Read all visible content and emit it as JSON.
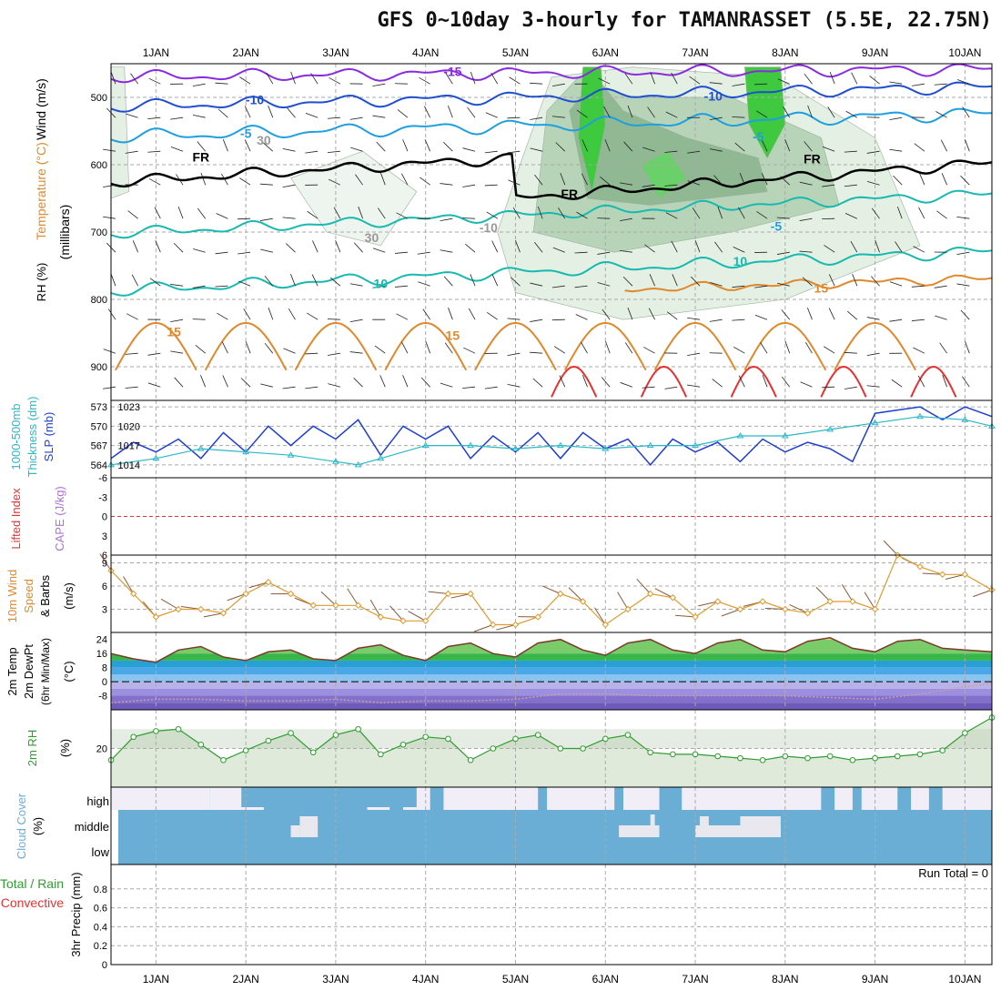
{
  "title": "GFS 0~10day 3-hourly for TAMANRASSET (5.5E, 22.75N)",
  "colors": {
    "rh_green": "#3ec93e",
    "temp_purple": "#8a2be2",
    "temp_blue": "#1f4fd0",
    "temp_cyan": "#1e9fe0",
    "temp_teal": "#17b9b0",
    "temp_orange": "#e0882a",
    "temp_red": "#e83030",
    "slp_blue": "#1f3fd0",
    "thick_cyan": "#2ab8c8",
    "wind_orange": "#e09a30",
    "rh2m_green": "#2e9e2e",
    "cloud_blue": "#6aaed6",
    "cloud_high_white": "#f2eef8"
  },
  "x_axis": {
    "dates": [
      "1JAN",
      "2JAN",
      "3JAN",
      "4JAN",
      "5JAN",
      "6JAN",
      "7JAN",
      "8JAN",
      "9JAN",
      "10JAN"
    ],
    "start_day": 0.5,
    "end_day": 10.3
  },
  "panels": {
    "upper_air": {
      "ylabel_wind": "Wind (m/s)",
      "ylabel_temp": "Temperature (°C)",
      "ylabel_rh": "RH (%)",
      "ylabel_p": "(millibars)",
      "yticks": [
        500,
        600,
        700,
        800,
        900
      ],
      "ylim": [
        450,
        950
      ],
      "contour_labels": [
        "-15",
        "-10",
        "-5",
        "-10",
        "-5",
        "FR",
        "FR",
        "FR",
        "10",
        "10",
        "15",
        "15",
        "15",
        "30",
        "-10",
        "30",
        "-5"
      ]
    },
    "slp": {
      "ylabel_a": "1000-500mb",
      "ylabel_b": "Thickness (dm)",
      "ylabel_c": "SLP (mb)",
      "left_ticks": [
        564,
        567,
        570,
        573
      ],
      "right_ticks": [
        1014,
        1017,
        1020,
        1023
      ]
    },
    "cape": {
      "ylabel_a": "Lifted Index",
      "ylabel_b": "CAPE (J/kg)",
      "yticks": [
        "-6",
        "-3",
        "0",
        "3",
        "6"
      ]
    },
    "wind10m": {
      "ylabel_a": "10m Wind",
      "ylabel_b": "Speed",
      "ylabel_c": "& Barbs",
      "ylabel_d": "(m/s)",
      "yticks": [
        3,
        6,
        9
      ],
      "ylim": [
        0,
        10
      ]
    },
    "temp2m": {
      "ylabel_a": "2m Temp",
      "ylabel_b": "2m DewPt",
      "ylabel_c": "(6hr Min/Max)",
      "ylabel_d": "(°C)",
      "yticks": [
        -8,
        0,
        8,
        16,
        24
      ],
      "ylim": [
        -16,
        28
      ]
    },
    "rh2m": {
      "ylabel_a": "2m RH",
      "ylabel_b": "(%)",
      "yticks": [
        20
      ],
      "ylim": [
        0,
        40
      ]
    },
    "cloud": {
      "ylabel_a": "Cloud Cover",
      "ylabel_b": "(%)",
      "levels": [
        "high",
        "middle",
        "low"
      ]
    },
    "precip": {
      "ylabel_a": "Total / Rain",
      "ylabel_b": "Convective",
      "ylabel_c": "3hr Precip (mm)",
      "run_total": "Run Total = 0",
      "yticks": [
        "0",
        "0.2",
        "0.4",
        "0.6",
        "0.8"
      ],
      "ylim": [
        0,
        1.0
      ]
    }
  },
  "chart_data": [
    {
      "type": "line",
      "name": "SLP (mb)",
      "x": [
        0.5,
        0.75,
        1.0,
        1.25,
        1.5,
        1.75,
        2.0,
        2.25,
        2.5,
        2.75,
        3.0,
        3.25,
        3.5,
        3.75,
        4.0,
        4.25,
        4.5,
        4.75,
        5.0,
        5.25,
        5.5,
        5.75,
        6.0,
        6.25,
        6.5,
        6.75,
        7.0,
        7.25,
        7.5,
        7.75,
        8.0,
        8.25,
        8.5,
        8.75,
        9.0,
        9.25,
        9.5,
        9.75,
        10.0,
        10.3
      ],
      "y": [
        1015,
        1017.5,
        1016,
        1018,
        1015,
        1019,
        1016,
        1020,
        1017,
        1020,
        1018,
        1021,
        1015.5,
        1020,
        1018,
        1020,
        1015,
        1018.5,
        1016,
        1019,
        1015,
        1019,
        1016.5,
        1018,
        1014,
        1018,
        1016,
        1017.5,
        1014.5,
        1018,
        1016,
        1017.5,
        1016.5,
        1014.5,
        1022,
        1022.5,
        1023,
        1021,
        1023,
        1021.5
      ]
    },
    {
      "type": "line",
      "name": "1000-500mb Thickness (dm)",
      "x": [
        0.5,
        1.0,
        1.5,
        2.0,
        2.5,
        3.0,
        3.25,
        3.5,
        4.0,
        4.5,
        5.0,
        5.5,
        6.0,
        6.5,
        7.0,
        7.5,
        8.0,
        8.5,
        9.0,
        9.5,
        10.0,
        10.3
      ],
      "y": [
        564,
        565,
        566.5,
        566,
        565.5,
        564.5,
        564,
        565,
        567,
        567,
        566.5,
        567,
        566.5,
        567,
        567,
        568.5,
        568.5,
        569.5,
        570.5,
        571.5,
        571,
        570
      ]
    },
    {
      "type": "line",
      "name": "10m Wind Speed (m/s)",
      "x": [
        0.5,
        0.75,
        1.0,
        1.25,
        1.5,
        1.75,
        2.0,
        2.25,
        2.5,
        2.75,
        3.0,
        3.25,
        3.5,
        3.75,
        4.0,
        4.25,
        4.5,
        4.75,
        5.0,
        5.25,
        5.5,
        5.75,
        6.0,
        6.25,
        6.5,
        6.75,
        7.0,
        7.25,
        7.5,
        7.75,
        8.0,
        8.25,
        8.5,
        8.75,
        9.0,
        9.25,
        9.5,
        9.75,
        10.0,
        10.3
      ],
      "y": [
        8,
        5,
        2,
        3,
        3,
        2.5,
        5,
        6.5,
        5,
        3.5,
        3.5,
        3.5,
        2,
        1.5,
        1.5,
        5,
        5,
        1,
        1,
        2,
        5,
        4,
        1,
        3,
        5,
        4.5,
        2,
        4,
        3,
        4,
        3,
        2.5,
        4,
        4,
        3,
        10,
        8.5,
        7.5,
        7.5,
        5.5
      ]
    },
    {
      "type": "area",
      "name": "2m Temp (°C)",
      "x": [
        0.5,
        0.75,
        1.0,
        1.25,
        1.5,
        1.75,
        2.0,
        2.25,
        2.5,
        2.75,
        3.0,
        3.25,
        3.5,
        3.75,
        4.0,
        4.25,
        4.5,
        4.75,
        5.0,
        5.25,
        5.5,
        5.75,
        6.0,
        6.25,
        6.5,
        6.75,
        7.0,
        7.25,
        7.5,
        7.75,
        8.0,
        8.25,
        8.5,
        8.75,
        9.0,
        9.25,
        9.5,
        9.75,
        10.0,
        10.3
      ],
      "y": [
        16,
        13,
        11,
        18,
        20,
        14,
        12,
        17,
        18,
        13,
        12,
        19,
        21,
        15,
        12,
        20,
        22,
        16,
        14,
        22,
        24,
        18,
        15,
        22,
        24,
        18,
        16,
        22,
        24,
        18,
        17,
        23,
        25,
        19,
        17,
        23,
        24,
        19,
        18,
        17
      ]
    },
    {
      "type": "line",
      "name": "2m DewPt (°C)",
      "x": [
        0.5,
        1.0,
        1.5,
        2.0,
        2.5,
        3.0,
        3.5,
        4.0,
        4.5,
        5.0,
        5.5,
        6.0,
        6.5,
        7.0,
        7.5,
        8.0,
        8.5,
        9.0,
        9.5,
        10.0,
        10.3
      ],
      "y": [
        -12,
        -10,
        -10,
        -11,
        -11,
        -10,
        -12,
        -11,
        -11,
        -10,
        -7,
        -7,
        -8,
        -8,
        -8,
        -8,
        -9,
        -10,
        -7,
        -3,
        -1
      ]
    },
    {
      "type": "area",
      "name": "2m RH (%)",
      "x": [
        0.5,
        0.75,
        1.0,
        1.25,
        1.5,
        1.75,
        2.0,
        2.25,
        2.5,
        2.75,
        3.0,
        3.25,
        3.5,
        3.75,
        4.0,
        4.25,
        4.5,
        4.75,
        5.0,
        5.25,
        5.5,
        5.75,
        6.0,
        6.25,
        6.5,
        6.75,
        7.0,
        7.25,
        7.5,
        7.75,
        8.0,
        8.25,
        8.5,
        8.75,
        9.0,
        9.25,
        9.5,
        9.75,
        10.0,
        10.3
      ],
      "y": [
        14,
        26,
        29,
        30,
        22,
        14,
        19,
        24,
        28,
        18,
        27,
        30,
        17,
        22,
        26,
        25,
        14,
        20,
        25,
        27,
        20,
        20,
        25,
        27,
        18,
        17,
        17,
        16,
        15,
        14,
        16,
        15,
        16,
        14,
        15,
        16,
        17,
        19,
        28,
        36
      ]
    },
    {
      "type": "bar",
      "name": "3hr Precip (mm)",
      "categories": [],
      "values": [],
      "ylim": [
        0,
        1.0
      ]
    }
  ]
}
